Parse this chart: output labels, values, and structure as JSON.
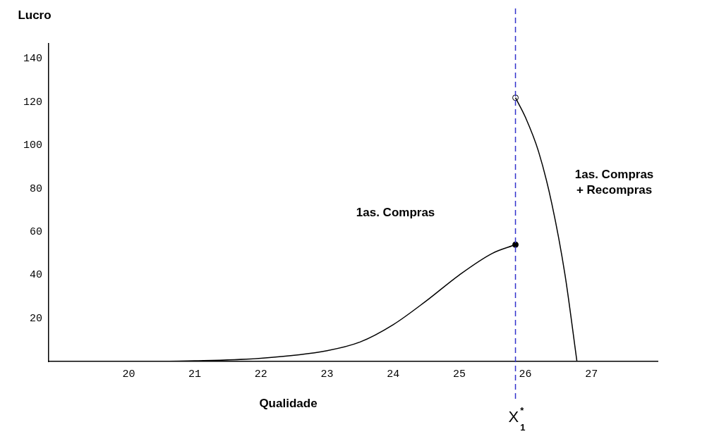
{
  "chart_data": {
    "type": "line",
    "xlabel": "Qualidade",
    "ylabel": "Lucro",
    "xlim": [
      18.79,
      28
    ],
    "xticks": [
      20,
      21,
      22,
      23,
      24,
      25,
      26,
      27
    ],
    "ylim": [
      0,
      147
    ],
    "yticks": [
      20,
      40,
      60,
      80,
      100,
      120,
      140
    ],
    "grid": false,
    "legend": false,
    "marker": "none",
    "line_style": "solid",
    "series": [
      {
        "color": "#000000",
        "x": [
          20.1,
          21,
          22,
          23,
          23.5,
          24,
          24.5,
          25,
          25.5,
          25.85
        ],
        "values": [
          0,
          0.3,
          1.5,
          5,
          9,
          17,
          28,
          40,
          50,
          54
        ]
      },
      {
        "color": "#000000",
        "x": [
          25.85,
          26,
          26.2,
          26.4,
          26.6,
          26.78
        ],
        "values": [
          122,
          113,
          97,
          73,
          40,
          0
        ]
      },
      {
        "type": "scatter",
        "marker": "circle",
        "color": "#000000",
        "x": [
          25.85
        ],
        "values": [
          54
        ]
      },
      {
        "type": "scatter",
        "marker": "circle",
        "color": "#ffffff",
        "x": [
          25.85
        ],
        "values": [
          122
        ]
      }
    ],
    "ref_lines": [
      {
        "axis": "x",
        "value": 25.85,
        "label": "X$^{*}$$_{1}$",
        "color": "#3333cc",
        "line_style": "dashed"
      }
    ],
    "annotations": [
      "1as. Compras",
      "1as. Compras\n+ Recompras"
    ]
  }
}
